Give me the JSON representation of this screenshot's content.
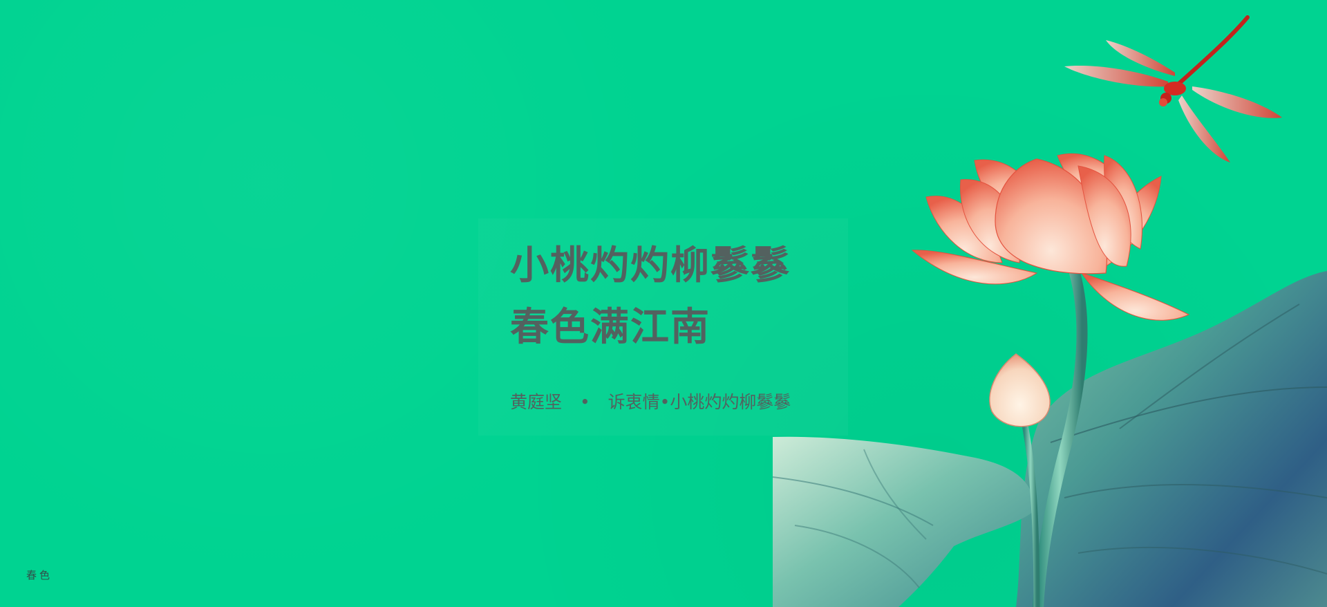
{
  "poem": {
    "line1": "小桃灼灼柳鬖鬖",
    "line2": "春色满江南",
    "author": "黄庭坚",
    "separator": "•",
    "title": "诉衷情•小桃灼灼柳鬖鬖"
  },
  "signature": "春色",
  "colors": {
    "background": "#00d391",
    "text": "#53615f",
    "lotus_petal": "#f7a68c",
    "lotus_edge": "#e4533f",
    "leaf": "#5aa79a",
    "leaf_dark": "#2e5f8a",
    "dragonfly": "#e33d33"
  },
  "icons": {
    "dragonfly": "dragonfly-illustration",
    "lotus": "lotus-flower-illustration",
    "bud": "lotus-bud-illustration",
    "leaf": "lotus-leaf-illustration"
  }
}
